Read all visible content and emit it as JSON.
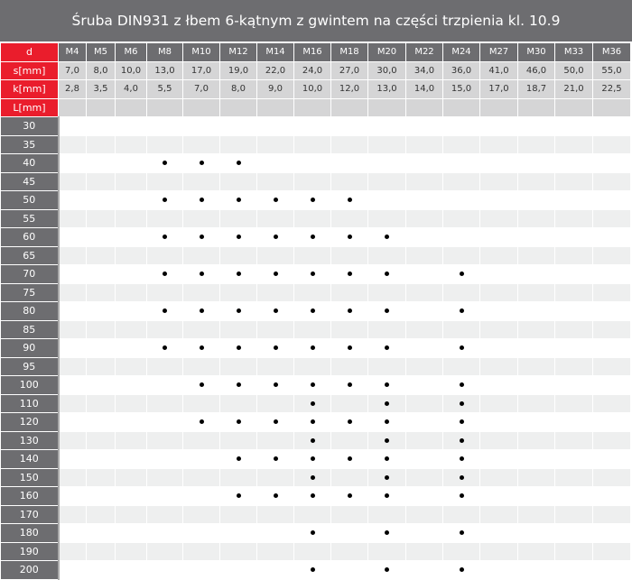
{
  "title": "Śruba DIN931 z łbem 6-kątnym z gwintem na części trzpienia kl. 10.9",
  "row_labels": {
    "d": "d",
    "s": "s[mm]",
    "k": "k[mm]",
    "L": "L[mm]"
  },
  "sizes": [
    "M4",
    "M5",
    "M6",
    "M8",
    "M10",
    "M12",
    "M14",
    "M16",
    "M18",
    "M20",
    "M22",
    "M24",
    "M27",
    "M30",
    "M33",
    "M36"
  ],
  "s": [
    "7,0",
    "8,0",
    "10,0",
    "13,0",
    "17,0",
    "19,0",
    "22,0",
    "24,0",
    "27,0",
    "30,0",
    "34,0",
    "36,0",
    "41,0",
    "46,0",
    "50,0",
    "55,0"
  ],
  "k": [
    "2,8",
    "3,5",
    "4,0",
    "5,5",
    "7,0",
    "8,0",
    "9,0",
    "10,0",
    "12,0",
    "13,0",
    "14,0",
    "15,0",
    "17,0",
    "18,7",
    "21,0",
    "22,5"
  ],
  "lengths": [
    {
      "L": "30",
      "available": []
    },
    {
      "L": "35",
      "available": []
    },
    {
      "L": "40",
      "available": [
        "M8",
        "M10",
        "M12"
      ]
    },
    {
      "L": "45",
      "available": []
    },
    {
      "L": "50",
      "available": [
        "M8",
        "M10",
        "M12",
        "M14",
        "M16",
        "M18"
      ]
    },
    {
      "L": "55",
      "available": []
    },
    {
      "L": "60",
      "available": [
        "M8",
        "M10",
        "M12",
        "M14",
        "M16",
        "M18",
        "M20"
      ]
    },
    {
      "L": "65",
      "available": []
    },
    {
      "L": "70",
      "available": [
        "M8",
        "M10",
        "M12",
        "M14",
        "M16",
        "M18",
        "M20",
        "M24"
      ]
    },
    {
      "L": "75",
      "available": []
    },
    {
      "L": "80",
      "available": [
        "M8",
        "M10",
        "M12",
        "M14",
        "M16",
        "M18",
        "M20",
        "M24"
      ]
    },
    {
      "L": "85",
      "available": []
    },
    {
      "L": "90",
      "available": [
        "M8",
        "M10",
        "M12",
        "M14",
        "M16",
        "M18",
        "M20",
        "M24"
      ]
    },
    {
      "L": "95",
      "available": []
    },
    {
      "L": "100",
      "available": [
        "M10",
        "M12",
        "M14",
        "M16",
        "M18",
        "M20",
        "M24"
      ]
    },
    {
      "L": "110",
      "available": [
        "M16",
        "M20",
        "M24"
      ]
    },
    {
      "L": "120",
      "available": [
        "M10",
        "M12",
        "M14",
        "M16",
        "M18",
        "M20",
        "M24"
      ]
    },
    {
      "L": "130",
      "available": [
        "M16",
        "M20",
        "M24"
      ]
    },
    {
      "L": "140",
      "available": [
        "M12",
        "M14",
        "M16",
        "M18",
        "M20",
        "M24"
      ]
    },
    {
      "L": "150",
      "available": [
        "M16",
        "M20",
        "M24"
      ]
    },
    {
      "L": "160",
      "available": [
        "M12",
        "M14",
        "M16",
        "M18",
        "M20",
        "M24"
      ]
    },
    {
      "L": "170",
      "available": []
    },
    {
      "L": "180",
      "available": [
        "M16",
        "M20",
        "M24"
      ]
    },
    {
      "L": "190",
      "available": []
    },
    {
      "L": "200",
      "available": [
        "M16",
        "M20",
        "M24"
      ]
    }
  ]
}
